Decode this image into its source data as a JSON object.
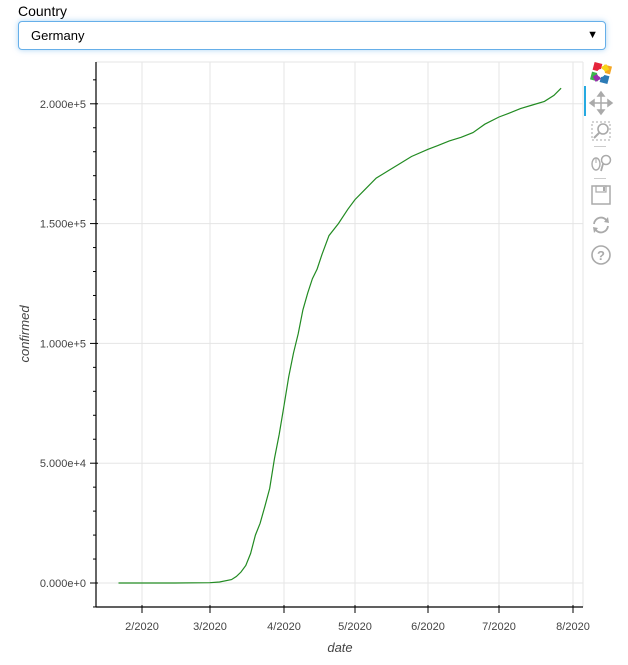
{
  "country_select": {
    "label": "Country",
    "selected": "Germany"
  },
  "toolbar": {
    "tools": [
      {
        "name": "bokeh-logo",
        "icon": "bokeh-logo-icon"
      },
      {
        "name": "pan",
        "icon": "pan-icon",
        "active": true
      },
      {
        "name": "box-zoom",
        "icon": "box-zoom-icon"
      },
      {
        "name": "wheel-zoom",
        "icon": "wheel-zoom-icon"
      },
      {
        "name": "save",
        "icon": "save-icon"
      },
      {
        "name": "reset",
        "icon": "reset-icon"
      },
      {
        "name": "help",
        "icon": "help-icon"
      }
    ],
    "active_color": "#26aae1"
  },
  "axes": {
    "x_title": "date",
    "y_title": "confirmed",
    "x_ticks": [
      "2/2020",
      "3/2020",
      "4/2020",
      "5/2020",
      "6/2020",
      "7/2020",
      "8/2020"
    ],
    "y_ticks": [
      "0.000e+0",
      "5.000e+4",
      "1.000e+5",
      "1.500e+5",
      "2.000e+5"
    ]
  },
  "line_color": "#228b22",
  "chart_data": {
    "type": "line",
    "title": "",
    "xlabel": "date",
    "ylabel": "confirmed",
    "x_tick_labels": [
      "2/2020",
      "3/2020",
      "4/2020",
      "5/2020",
      "6/2020",
      "7/2020",
      "8/2020"
    ],
    "y_tick_labels": [
      "0.000e+0",
      "5.000e+4",
      "1.000e+5",
      "1.500e+5",
      "2.000e+5"
    ],
    "ylim": [
      -10000,
      218000
    ],
    "xlim": [
      "2020-01-12",
      "2020-08-04"
    ],
    "grid": true,
    "legend": null,
    "series": [
      {
        "name": "Germany",
        "color": "#228b22",
        "x": [
          "2020-01-22",
          "2020-02-01",
          "2020-02-15",
          "2020-03-01",
          "2020-03-05",
          "2020-03-10",
          "2020-03-12",
          "2020-03-14",
          "2020-03-16",
          "2020-03-18",
          "2020-03-20",
          "2020-03-22",
          "2020-03-24",
          "2020-03-26",
          "2020-03-28",
          "2020-03-30",
          "2020-04-01",
          "2020-04-03",
          "2020-04-05",
          "2020-04-07",
          "2020-04-09",
          "2020-04-11",
          "2020-04-13",
          "2020-04-15",
          "2020-04-17",
          "2020-04-20",
          "2020-04-24",
          "2020-04-28",
          "2020-05-01",
          "2020-05-05",
          "2020-05-10",
          "2020-05-15",
          "2020-05-20",
          "2020-05-25",
          "2020-06-01",
          "2020-06-05",
          "2020-06-10",
          "2020-06-15",
          "2020-06-20",
          "2020-06-25",
          "2020-07-01",
          "2020-07-05",
          "2020-07-10",
          "2020-07-15",
          "2020-07-20",
          "2020-07-24",
          "2020-07-27"
        ],
        "values": [
          0,
          10,
          16,
          130,
          400,
          1400,
          2700,
          4600,
          7300,
          12300,
          20000,
          24900,
          32000,
          39500,
          52000,
          62000,
          74000,
          86000,
          96000,
          104000,
          114000,
          121000,
          127000,
          131000,
          137000,
          145000,
          150000,
          156000,
          160000,
          164000,
          169000,
          172000,
          175000,
          178000,
          181000,
          182500,
          184500,
          186000,
          188000,
          191500,
          194500,
          196000,
          198000,
          199500,
          201000,
          203500,
          206500
        ]
      }
    ]
  }
}
